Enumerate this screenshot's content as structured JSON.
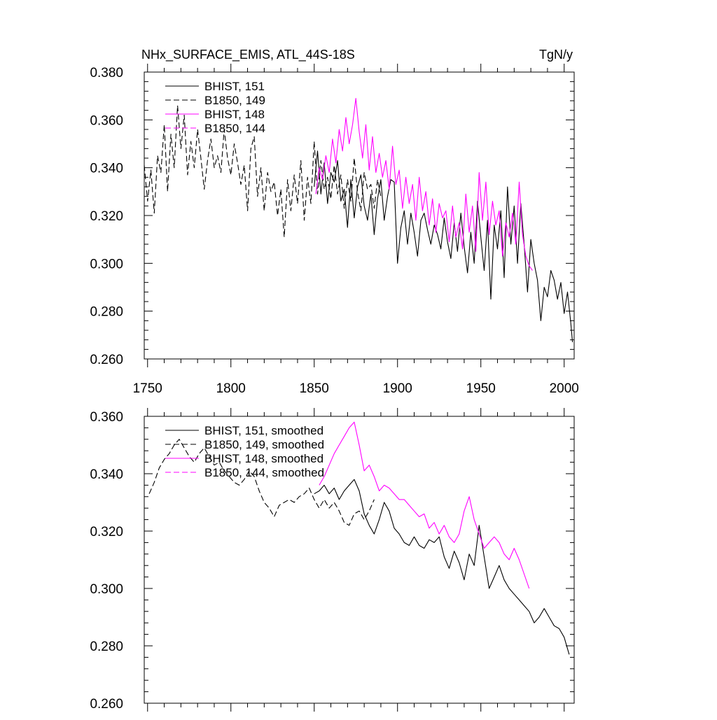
{
  "chart_data": [
    {
      "type": "line",
      "title": "NHx_SURFACE_EMIS, ATL_44S-18S",
      "units": "TgN/y",
      "xlabel": "",
      "ylabel": "",
      "xlim": [
        1748,
        2006
      ],
      "ylim": [
        0.26,
        0.38
      ],
      "x_ticks": [
        1750,
        1800,
        1850,
        1900,
        1950,
        2000
      ],
      "y_ticks": [
        0.26,
        0.28,
        0.3,
        0.32,
        0.34,
        0.36,
        0.38
      ],
      "x_tick_labels": [
        "1750",
        "1800",
        "1850",
        "1900",
        "1950",
        "2000"
      ],
      "y_tick_labels": [
        "0.260",
        "0.280",
        "0.300",
        "0.320",
        "0.340",
        "0.360",
        "0.380"
      ],
      "legend_position": "top-left",
      "series": [
        {
          "name": "BHIST, 151",
          "color": "#000000",
          "dash": "solid",
          "x": [
            1850,
            1852,
            1854,
            1856,
            1858,
            1860,
            1862,
            1864,
            1866,
            1868,
            1870,
            1872,
            1874,
            1876,
            1878,
            1880,
            1882,
            1884,
            1886,
            1888,
            1890,
            1892,
            1894,
            1896,
            1898,
            1900,
            1902,
            1904,
            1906,
            1908,
            1910,
            1912,
            1914,
            1916,
            1918,
            1920,
            1922,
            1924,
            1926,
            1928,
            1930,
            1932,
            1934,
            1936,
            1938,
            1940,
            1942,
            1944,
            1946,
            1948,
            1950,
            1952,
            1954,
            1956,
            1958,
            1960,
            1962,
            1964,
            1966,
            1968,
            1970,
            1972,
            1974,
            1976,
            1978,
            1980,
            1982,
            1984,
            1986,
            1988,
            1990,
            1992,
            1994,
            1996,
            1998,
            2000,
            2002,
            2004,
            2005
          ],
          "y": [
            0.332,
            0.347,
            0.329,
            0.342,
            0.325,
            0.338,
            0.334,
            0.343,
            0.326,
            0.331,
            0.315,
            0.335,
            0.319,
            0.332,
            0.337,
            0.324,
            0.318,
            0.329,
            0.312,
            0.327,
            0.335,
            0.318,
            0.328,
            0.335,
            0.334,
            0.3,
            0.315,
            0.322,
            0.308,
            0.321,
            0.313,
            0.303,
            0.318,
            0.321,
            0.314,
            0.308,
            0.316,
            0.312,
            0.306,
            0.319,
            0.309,
            0.302,
            0.317,
            0.305,
            0.321,
            0.307,
            0.296,
            0.313,
            0.3,
            0.326,
            0.311,
            0.297,
            0.318,
            0.285,
            0.316,
            0.306,
            0.322,
            0.294,
            0.332,
            0.308,
            0.324,
            0.3,
            0.325,
            0.308,
            0.288,
            0.31,
            0.3,
            0.293,
            0.276,
            0.29,
            0.286,
            0.297,
            0.293,
            0.285,
            0.292,
            0.279,
            0.288,
            0.275,
            0.267
          ]
        },
        {
          "name": "B1850, 149",
          "color": "#000000",
          "dash": "dashed",
          "x": [
            1748,
            1750,
            1752,
            1754,
            1756,
            1758,
            1760,
            1762,
            1764,
            1766,
            1768,
            1770,
            1772,
            1774,
            1776,
            1778,
            1780,
            1782,
            1784,
            1786,
            1788,
            1790,
            1792,
            1794,
            1796,
            1798,
            1800,
            1802,
            1804,
            1806,
            1808,
            1810,
            1812,
            1814,
            1816,
            1818,
            1820,
            1822,
            1824,
            1826,
            1828,
            1830,
            1832,
            1834,
            1836,
            1838,
            1840,
            1842,
            1844,
            1846,
            1848,
            1850,
            1852,
            1854,
            1856,
            1858,
            1860,
            1862,
            1864,
            1866,
            1868,
            1870,
            1872,
            1874,
            1876,
            1878,
            1880,
            1882,
            1884,
            1886,
            1888,
            1890
          ],
          "y": [
            0.341,
            0.326,
            0.339,
            0.321,
            0.345,
            0.338,
            0.358,
            0.33,
            0.354,
            0.34,
            0.366,
            0.348,
            0.362,
            0.337,
            0.351,
            0.34,
            0.356,
            0.344,
            0.331,
            0.343,
            0.352,
            0.34,
            0.345,
            0.338,
            0.356,
            0.344,
            0.337,
            0.35,
            0.342,
            0.333,
            0.341,
            0.322,
            0.348,
            0.353,
            0.328,
            0.34,
            0.322,
            0.338,
            0.33,
            0.334,
            0.32,
            0.331,
            0.311,
            0.335,
            0.322,
            0.337,
            0.325,
            0.343,
            0.318,
            0.336,
            0.325,
            0.351,
            0.329,
            0.343,
            0.331,
            0.336,
            0.327,
            0.341,
            0.329,
            0.337,
            0.323,
            0.335,
            0.326,
            0.344,
            0.33,
            0.322,
            0.338,
            0.331,
            0.333,
            0.323,
            0.335,
            0.328
          ]
        },
        {
          "name": "BHIST, 148",
          "color": "#ff00ff",
          "dash": "solid",
          "x": [
            1851,
            1853,
            1855,
            1857,
            1859,
            1861,
            1863,
            1865,
            1867,
            1869,
            1871,
            1873,
            1875,
            1877,
            1879,
            1881,
            1883,
            1885,
            1887,
            1889,
            1891,
            1893,
            1895,
            1897,
            1899,
            1901,
            1903,
            1905,
            1907,
            1909,
            1911,
            1913,
            1915,
            1917,
            1919,
            1921,
            1923,
            1925,
            1927,
            1929,
            1931,
            1933,
            1935,
            1937,
            1939,
            1941,
            1943,
            1945,
            1947,
            1949,
            1951,
            1953,
            1955,
            1957,
            1959,
            1961,
            1963,
            1965,
            1967,
            1969,
            1971,
            1973,
            1975,
            1977,
            1979,
            1981
          ],
          "y": [
            0.329,
            0.34,
            0.335,
            0.345,
            0.338,
            0.352,
            0.342,
            0.356,
            0.347,
            0.361,
            0.35,
            0.358,
            0.369,
            0.355,
            0.344,
            0.358,
            0.339,
            0.353,
            0.338,
            0.346,
            0.336,
            0.343,
            0.331,
            0.349,
            0.333,
            0.339,
            0.323,
            0.336,
            0.325,
            0.333,
            0.318,
            0.336,
            0.322,
            0.33,
            0.316,
            0.327,
            0.313,
            0.325,
            0.319,
            0.322,
            0.309,
            0.324,
            0.311,
            0.317,
            0.306,
            0.329,
            0.313,
            0.324,
            0.305,
            0.338,
            0.318,
            0.334,
            0.312,
            0.326,
            0.316,
            0.322,
            0.303,
            0.317,
            0.311,
            0.321,
            0.308,
            0.334,
            0.312,
            0.303,
            0.299,
            0.297
          ]
        },
        {
          "name": "B1850, 144",
          "color": "#ff00ff",
          "dash": "dashed",
          "x": [],
          "y": []
        }
      ]
    },
    {
      "type": "line",
      "title": "",
      "xlabel": "",
      "ylabel": "",
      "xlim": [
        1748,
        2006
      ],
      "ylim": [
        0.26,
        0.36
      ],
      "y_ticks": [
        0.26,
        0.28,
        0.3,
        0.32,
        0.34,
        0.36
      ],
      "y_tick_labels": [
        "0.260",
        "0.280",
        "0.300",
        "0.320",
        "0.340",
        "0.360"
      ],
      "x_ticks": [
        1750,
        1800,
        1850,
        1900,
        1950,
        2000
      ],
      "legend_position": "top-left",
      "series": [
        {
          "name": "BHIST, 151, smoothed",
          "color": "#000000",
          "dash": "solid",
          "x": [
            1850,
            1853,
            1856,
            1859,
            1862,
            1865,
            1868,
            1871,
            1874,
            1877,
            1880,
            1883,
            1886,
            1889,
            1892,
            1895,
            1898,
            1901,
            1904,
            1907,
            1910,
            1913,
            1916,
            1919,
            1922,
            1925,
            1928,
            1931,
            1934,
            1937,
            1940,
            1943,
            1946,
            1949,
            1952,
            1955,
            1958,
            1961,
            1964,
            1967,
            1970,
            1973,
            1976,
            1979,
            1982,
            1985,
            1988,
            1991,
            1994,
            1997,
            2000,
            2003
          ],
          "y": [
            0.333,
            0.334,
            0.336,
            0.333,
            0.335,
            0.331,
            0.334,
            0.336,
            0.338,
            0.334,
            0.326,
            0.322,
            0.319,
            0.324,
            0.33,
            0.327,
            0.321,
            0.319,
            0.316,
            0.315,
            0.318,
            0.315,
            0.314,
            0.317,
            0.316,
            0.318,
            0.311,
            0.307,
            0.313,
            0.309,
            0.303,
            0.312,
            0.308,
            0.322,
            0.311,
            0.3,
            0.304,
            0.308,
            0.303,
            0.3,
            0.298,
            0.296,
            0.294,
            0.292,
            0.288,
            0.29,
            0.293,
            0.29,
            0.287,
            0.286,
            0.283,
            0.277
          ]
        },
        {
          "name": "B1850, 149, smoothed",
          "color": "#000000",
          "dash": "dashed",
          "x": [
            1751,
            1754,
            1757,
            1760,
            1763,
            1766,
            1769,
            1772,
            1775,
            1778,
            1781,
            1784,
            1787,
            1790,
            1793,
            1796,
            1799,
            1802,
            1805,
            1808,
            1811,
            1814,
            1817,
            1820,
            1823,
            1826,
            1829,
            1832,
            1835,
            1838,
            1841,
            1844,
            1847,
            1850,
            1853,
            1856,
            1859,
            1862,
            1865,
            1868,
            1871,
            1874,
            1877,
            1880,
            1883,
            1886
          ],
          "y": [
            0.333,
            0.337,
            0.342,
            0.345,
            0.347,
            0.35,
            0.352,
            0.349,
            0.346,
            0.344,
            0.347,
            0.349,
            0.346,
            0.343,
            0.344,
            0.341,
            0.339,
            0.337,
            0.336,
            0.338,
            0.341,
            0.339,
            0.334,
            0.33,
            0.328,
            0.325,
            0.329,
            0.33,
            0.331,
            0.33,
            0.332,
            0.333,
            0.335,
            0.331,
            0.328,
            0.331,
            0.328,
            0.33,
            0.327,
            0.323,
            0.322,
            0.326,
            0.327,
            0.324,
            0.327,
            0.331
          ]
        },
        {
          "name": "BHIST, 148, smoothed",
          "color": "#ff00ff",
          "dash": "solid",
          "x": [
            1853,
            1856,
            1859,
            1862,
            1865,
            1868,
            1871,
            1874,
            1877,
            1880,
            1883,
            1886,
            1889,
            1892,
            1895,
            1898,
            1901,
            1904,
            1907,
            1910,
            1913,
            1916,
            1919,
            1922,
            1925,
            1928,
            1931,
            1934,
            1937,
            1940,
            1943,
            1946,
            1949,
            1952,
            1955,
            1958,
            1961,
            1964,
            1967,
            1970,
            1973,
            1976,
            1979
          ],
          "y": [
            0.336,
            0.339,
            0.343,
            0.347,
            0.35,
            0.353,
            0.356,
            0.358,
            0.35,
            0.341,
            0.343,
            0.339,
            0.334,
            0.336,
            0.335,
            0.333,
            0.331,
            0.331,
            0.329,
            0.327,
            0.325,
            0.326,
            0.321,
            0.323,
            0.319,
            0.322,
            0.318,
            0.316,
            0.319,
            0.327,
            0.332,
            0.324,
            0.319,
            0.314,
            0.316,
            0.318,
            0.316,
            0.312,
            0.31,
            0.314,
            0.31,
            0.305,
            0.3
          ]
        },
        {
          "name": "B1850, 144, smoothed",
          "color": "#ff00ff",
          "dash": "dashed",
          "x": [],
          "y": []
        }
      ]
    }
  ]
}
